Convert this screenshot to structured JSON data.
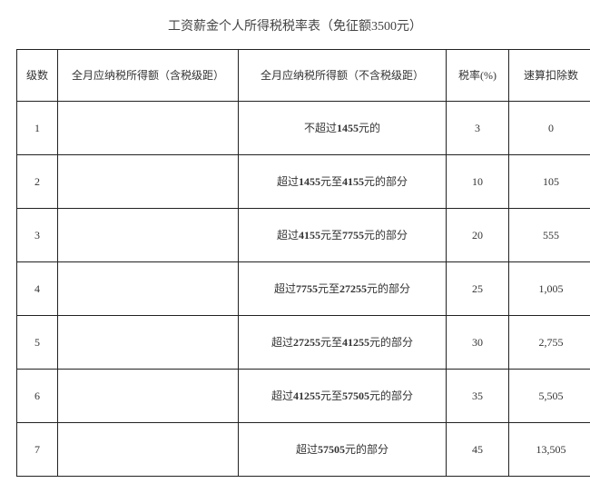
{
  "title": "工资薪金个人所得税税率表（免征额3500元）",
  "columns": {
    "level": "级数",
    "incl": "全月应纳税所得额（含税级距）",
    "excl": "全月应纳税所得额（不含税级距）",
    "rate": "税率(%)",
    "deduct": "速算扣除数"
  },
  "rows": [
    {
      "level": "1",
      "incl": "",
      "excl_html": "不超过<b>1455</b>元的",
      "rate": "3",
      "deduct": "0"
    },
    {
      "level": "2",
      "incl": "",
      "excl_html": "超过<b>1455</b>元至<b>4155</b>元的部分",
      "rate": "10",
      "deduct": "105"
    },
    {
      "level": "3",
      "incl": "",
      "excl_html": "超过<b>4155</b>元至<b>7755</b>元的部分",
      "rate": "20",
      "deduct": "555"
    },
    {
      "level": "4",
      "incl": "",
      "excl_html": "超过<b>7755</b>元至<b>27255</b>元的部分",
      "rate": "25",
      "deduct": "1,005"
    },
    {
      "level": "5",
      "incl": "",
      "excl_html": "超过<b>27255</b>元至<b>41255</b>元的部分",
      "rate": "30",
      "deduct": "2,755"
    },
    {
      "level": "6",
      "incl": "",
      "excl_html": "超过<b>41255</b>元至<b>57505</b>元的部分",
      "rate": "35",
      "deduct": "5,505"
    },
    {
      "level": "7",
      "incl": "",
      "excl_html": "超过<b>57505</b>元的部分",
      "rate": "45",
      "deduct": "13,505"
    }
  ]
}
